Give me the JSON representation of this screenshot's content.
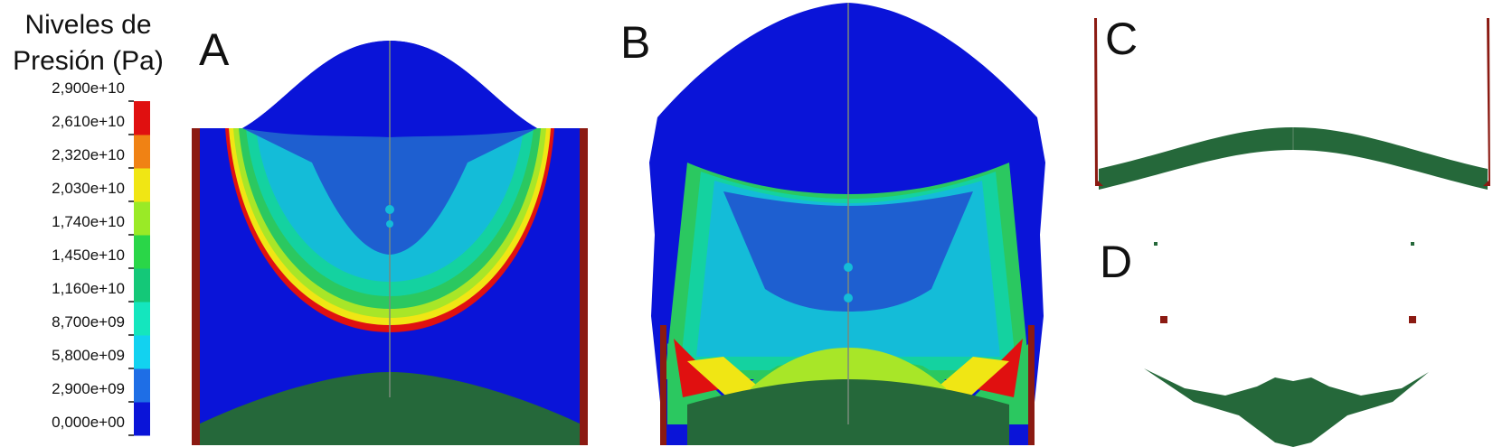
{
  "legend": {
    "title_line1": "Niveles de",
    "title_line2": "Presión (Pa)",
    "ticks": [
      "2,900e+10",
      "2,610e+10",
      "2,320e+10",
      "2,030e+10",
      "1,740e+10",
      "1,450e+10",
      "1,160e+10",
      "8,700e+09",
      "5,800e+09",
      "2,900e+09",
      "0,000e+00"
    ],
    "colors": [
      "#0a14d8",
      "#1e6ee6",
      "#12d2f0",
      "#14e6be",
      "#14c878",
      "#2ad648",
      "#9aea26",
      "#f0e614",
      "#f08214",
      "#e01010"
    ]
  },
  "panels": [
    {
      "id": "A",
      "label": "A"
    },
    {
      "id": "B",
      "label": "B"
    },
    {
      "id": "C",
      "label": "C"
    },
    {
      "id": "D",
      "label": "D"
    }
  ],
  "colors": {
    "deep_blue": "#0a14d8",
    "mid_blue": "#1e5fd0",
    "cyan": "#14bcd8",
    "teal": "#14d2a0",
    "green": "#2bc860",
    "lime": "#a8e628",
    "yellow": "#f0e614",
    "red": "#e01010",
    "plate_green": "#25683a",
    "wall_red": "#8b1a12"
  }
}
